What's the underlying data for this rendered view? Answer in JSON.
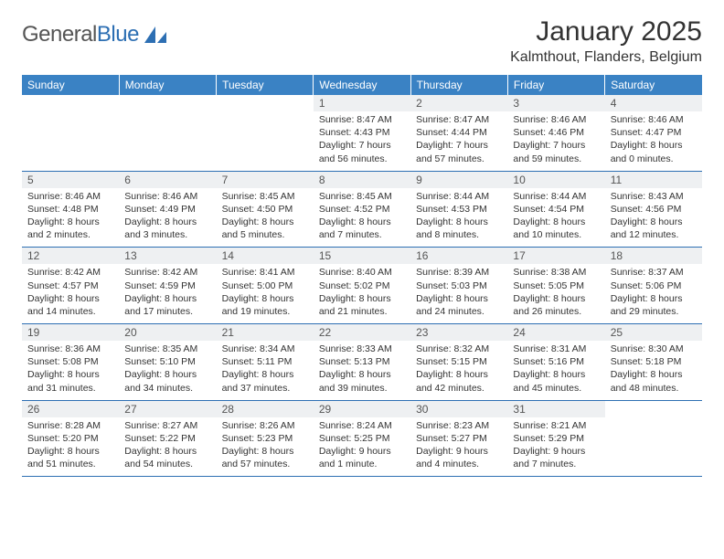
{
  "logo": {
    "text_gray": "General",
    "text_blue": "Blue"
  },
  "title": "January 2025",
  "location": "Kalmthout, Flanders, Belgium",
  "colors": {
    "header_bg": "#3a82c4",
    "header_text": "#ffffff",
    "rule": "#2d6fb3",
    "daynum_bg": "#eef0f2",
    "body_text": "#333333",
    "logo_blue": "#2d6fb3",
    "logo_gray": "#555555"
  },
  "typography": {
    "title_fontsize": 30,
    "location_fontsize": 16,
    "dayheader_fontsize": 12,
    "daynum_fontsize": 12,
    "detail_fontsize": 10.5
  },
  "day_headers": [
    "Sunday",
    "Monday",
    "Tuesday",
    "Wednesday",
    "Thursday",
    "Friday",
    "Saturday"
  ],
  "weeks": [
    {
      "nums": [
        "",
        "",
        "",
        "1",
        "2",
        "3",
        "4"
      ],
      "cells": [
        null,
        null,
        null,
        {
          "sunrise": "Sunrise: 8:47 AM",
          "sunset": "Sunset: 4:43 PM",
          "daylight": "Daylight: 7 hours and 56 minutes."
        },
        {
          "sunrise": "Sunrise: 8:47 AM",
          "sunset": "Sunset: 4:44 PM",
          "daylight": "Daylight: 7 hours and 57 minutes."
        },
        {
          "sunrise": "Sunrise: 8:46 AM",
          "sunset": "Sunset: 4:46 PM",
          "daylight": "Daylight: 7 hours and 59 minutes."
        },
        {
          "sunrise": "Sunrise: 8:46 AM",
          "sunset": "Sunset: 4:47 PM",
          "daylight": "Daylight: 8 hours and 0 minutes."
        }
      ]
    },
    {
      "nums": [
        "5",
        "6",
        "7",
        "8",
        "9",
        "10",
        "11"
      ],
      "cells": [
        {
          "sunrise": "Sunrise: 8:46 AM",
          "sunset": "Sunset: 4:48 PM",
          "daylight": "Daylight: 8 hours and 2 minutes."
        },
        {
          "sunrise": "Sunrise: 8:46 AM",
          "sunset": "Sunset: 4:49 PM",
          "daylight": "Daylight: 8 hours and 3 minutes."
        },
        {
          "sunrise": "Sunrise: 8:45 AM",
          "sunset": "Sunset: 4:50 PM",
          "daylight": "Daylight: 8 hours and 5 minutes."
        },
        {
          "sunrise": "Sunrise: 8:45 AM",
          "sunset": "Sunset: 4:52 PM",
          "daylight": "Daylight: 8 hours and 7 minutes."
        },
        {
          "sunrise": "Sunrise: 8:44 AM",
          "sunset": "Sunset: 4:53 PM",
          "daylight": "Daylight: 8 hours and 8 minutes."
        },
        {
          "sunrise": "Sunrise: 8:44 AM",
          "sunset": "Sunset: 4:54 PM",
          "daylight": "Daylight: 8 hours and 10 minutes."
        },
        {
          "sunrise": "Sunrise: 8:43 AM",
          "sunset": "Sunset: 4:56 PM",
          "daylight": "Daylight: 8 hours and 12 minutes."
        }
      ]
    },
    {
      "nums": [
        "12",
        "13",
        "14",
        "15",
        "16",
        "17",
        "18"
      ],
      "cells": [
        {
          "sunrise": "Sunrise: 8:42 AM",
          "sunset": "Sunset: 4:57 PM",
          "daylight": "Daylight: 8 hours and 14 minutes."
        },
        {
          "sunrise": "Sunrise: 8:42 AM",
          "sunset": "Sunset: 4:59 PM",
          "daylight": "Daylight: 8 hours and 17 minutes."
        },
        {
          "sunrise": "Sunrise: 8:41 AM",
          "sunset": "Sunset: 5:00 PM",
          "daylight": "Daylight: 8 hours and 19 minutes."
        },
        {
          "sunrise": "Sunrise: 8:40 AM",
          "sunset": "Sunset: 5:02 PM",
          "daylight": "Daylight: 8 hours and 21 minutes."
        },
        {
          "sunrise": "Sunrise: 8:39 AM",
          "sunset": "Sunset: 5:03 PM",
          "daylight": "Daylight: 8 hours and 24 minutes."
        },
        {
          "sunrise": "Sunrise: 8:38 AM",
          "sunset": "Sunset: 5:05 PM",
          "daylight": "Daylight: 8 hours and 26 minutes."
        },
        {
          "sunrise": "Sunrise: 8:37 AM",
          "sunset": "Sunset: 5:06 PM",
          "daylight": "Daylight: 8 hours and 29 minutes."
        }
      ]
    },
    {
      "nums": [
        "19",
        "20",
        "21",
        "22",
        "23",
        "24",
        "25"
      ],
      "cells": [
        {
          "sunrise": "Sunrise: 8:36 AM",
          "sunset": "Sunset: 5:08 PM",
          "daylight": "Daylight: 8 hours and 31 minutes."
        },
        {
          "sunrise": "Sunrise: 8:35 AM",
          "sunset": "Sunset: 5:10 PM",
          "daylight": "Daylight: 8 hours and 34 minutes."
        },
        {
          "sunrise": "Sunrise: 8:34 AM",
          "sunset": "Sunset: 5:11 PM",
          "daylight": "Daylight: 8 hours and 37 minutes."
        },
        {
          "sunrise": "Sunrise: 8:33 AM",
          "sunset": "Sunset: 5:13 PM",
          "daylight": "Daylight: 8 hours and 39 minutes."
        },
        {
          "sunrise": "Sunrise: 8:32 AM",
          "sunset": "Sunset: 5:15 PM",
          "daylight": "Daylight: 8 hours and 42 minutes."
        },
        {
          "sunrise": "Sunrise: 8:31 AM",
          "sunset": "Sunset: 5:16 PM",
          "daylight": "Daylight: 8 hours and 45 minutes."
        },
        {
          "sunrise": "Sunrise: 8:30 AM",
          "sunset": "Sunset: 5:18 PM",
          "daylight": "Daylight: 8 hours and 48 minutes."
        }
      ]
    },
    {
      "nums": [
        "26",
        "27",
        "28",
        "29",
        "30",
        "31",
        ""
      ],
      "cells": [
        {
          "sunrise": "Sunrise: 8:28 AM",
          "sunset": "Sunset: 5:20 PM",
          "daylight": "Daylight: 8 hours and 51 minutes."
        },
        {
          "sunrise": "Sunrise: 8:27 AM",
          "sunset": "Sunset: 5:22 PM",
          "daylight": "Daylight: 8 hours and 54 minutes."
        },
        {
          "sunrise": "Sunrise: 8:26 AM",
          "sunset": "Sunset: 5:23 PM",
          "daylight": "Daylight: 8 hours and 57 minutes."
        },
        {
          "sunrise": "Sunrise: 8:24 AM",
          "sunset": "Sunset: 5:25 PM",
          "daylight": "Daylight: 9 hours and 1 minute."
        },
        {
          "sunrise": "Sunrise: 8:23 AM",
          "sunset": "Sunset: 5:27 PM",
          "daylight": "Daylight: 9 hours and 4 minutes."
        },
        {
          "sunrise": "Sunrise: 8:21 AM",
          "sunset": "Sunset: 5:29 PM",
          "daylight": "Daylight: 9 hours and 7 minutes."
        },
        null
      ]
    }
  ]
}
